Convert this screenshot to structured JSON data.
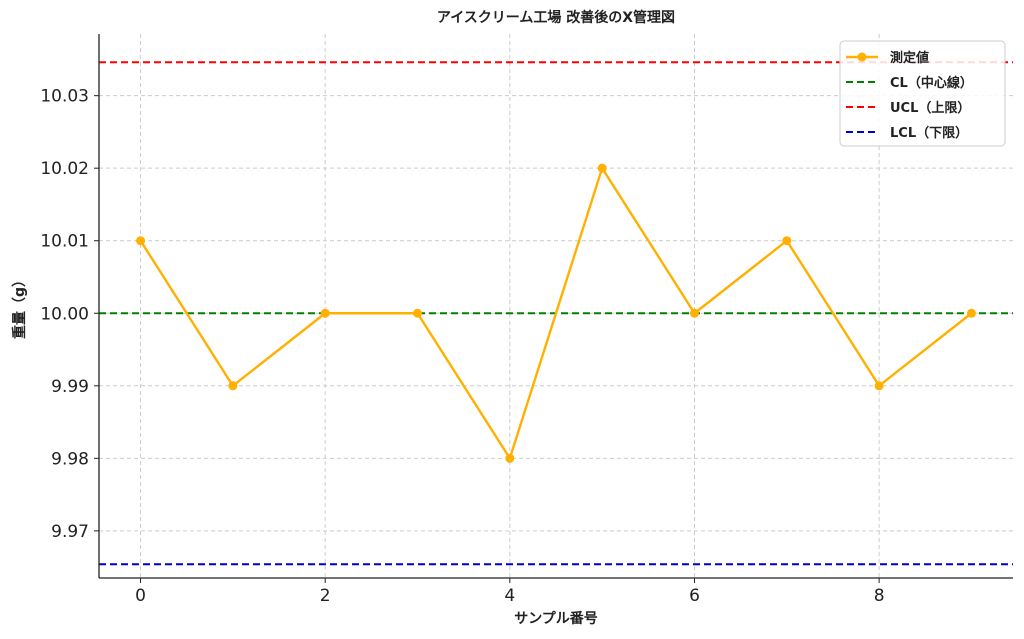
{
  "chart_data": {
    "type": "line",
    "title": "アイスクリーム工場 改善後のX管理図",
    "xlabel": "サンプル番号",
    "ylabel": "重量（g）",
    "x": [
      0,
      1,
      2,
      3,
      4,
      5,
      6,
      7,
      8,
      9
    ],
    "xlim": [
      -0.45,
      9.45
    ],
    "ylim": [
      9.9635,
      10.0385
    ],
    "xticks": [
      0,
      2,
      4,
      6,
      8
    ],
    "yticks": [
      9.97,
      9.98,
      9.99,
      10.0,
      10.01,
      10.02,
      10.03
    ],
    "ytick_labels": [
      "9.97",
      "9.98",
      "9.99",
      "10.00",
      "10.01",
      "10.02",
      "10.03"
    ],
    "grid": true,
    "legend_position": "top-right",
    "series": [
      {
        "name": "測定値",
        "kind": "line-marker",
        "color": "#FFB000",
        "values": [
          10.01,
          9.99,
          10.0,
          10.0,
          9.98,
          10.02,
          10.0,
          10.01,
          9.99,
          10.0
        ]
      },
      {
        "name": "CL（中心線）",
        "kind": "hline",
        "color": "#008000",
        "value": 10.0
      },
      {
        "name": "UCL（上限）",
        "kind": "hline",
        "color": "#FF0000",
        "value": 10.0346
      },
      {
        "name": "LCL（下限）",
        "kind": "hline",
        "color": "#0000CC",
        "value": 9.9654
      }
    ]
  }
}
